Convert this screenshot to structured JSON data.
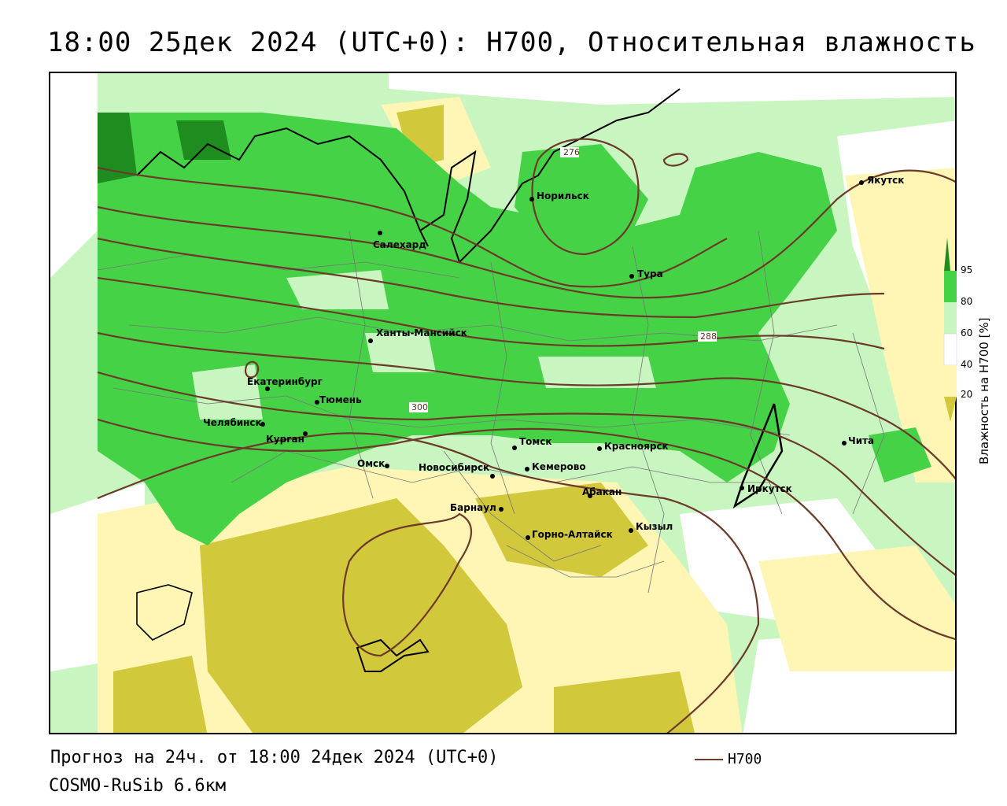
{
  "title": "18:00 25дек 2024 (UTC+0): H700, Относительная влажность",
  "footer": {
    "forecast": "Прогноз на 24ч. от 18:00 24дек 2024 (UTC+0)",
    "model": "COSMO-RuSib 6.6км"
  },
  "legend": {
    "line_label": "H700",
    "line_color": "#6b3a2a"
  },
  "colorbar": {
    "title": "Влажность на H700 [%]",
    "ticks": [
      "95",
      "80",
      "60",
      "40",
      "20"
    ],
    "colors": {
      "above95": "#1e8c1e",
      "80_95": "#46d246",
      "60_80": "#c8f5c0",
      "40_60": "#ffffff",
      "20_40": "#fff5b4",
      "below20": "#d2c83c"
    }
  },
  "contour_labels": [
    "276",
    "288",
    "300"
  ],
  "cities": [
    {
      "id": "yakutsk",
      "name": "Якутск"
    },
    {
      "id": "norilsk",
      "name": "Норильск"
    },
    {
      "id": "salekhard",
      "name": "Салехард"
    },
    {
      "id": "tura",
      "name": "Тура"
    },
    {
      "id": "khanty",
      "name": "Ханты-Мансийск"
    },
    {
      "id": "ekb",
      "name": "Екатеринбург"
    },
    {
      "id": "tyumen",
      "name": "Тюмень"
    },
    {
      "id": "chelyabinsk",
      "name": "Челябинск"
    },
    {
      "id": "kurgan",
      "name": "Курган"
    },
    {
      "id": "tomsk",
      "name": "Томск"
    },
    {
      "id": "krasnoyarsk",
      "name": "Красноярск"
    },
    {
      "id": "omsk",
      "name": "Омск"
    },
    {
      "id": "novosibirsk",
      "name": "Новосибирск"
    },
    {
      "id": "kemerovo",
      "name": "Кемерово"
    },
    {
      "id": "abakan",
      "name": "Абакан"
    },
    {
      "id": "barnaul",
      "name": "Барнаул"
    },
    {
      "id": "gorno",
      "name": "Горно-Алтайск"
    },
    {
      "id": "kyzyl",
      "name": "Кызыл"
    },
    {
      "id": "irkutsk",
      "name": "Иркутск"
    },
    {
      "id": "chita",
      "name": "Чита"
    }
  ]
}
